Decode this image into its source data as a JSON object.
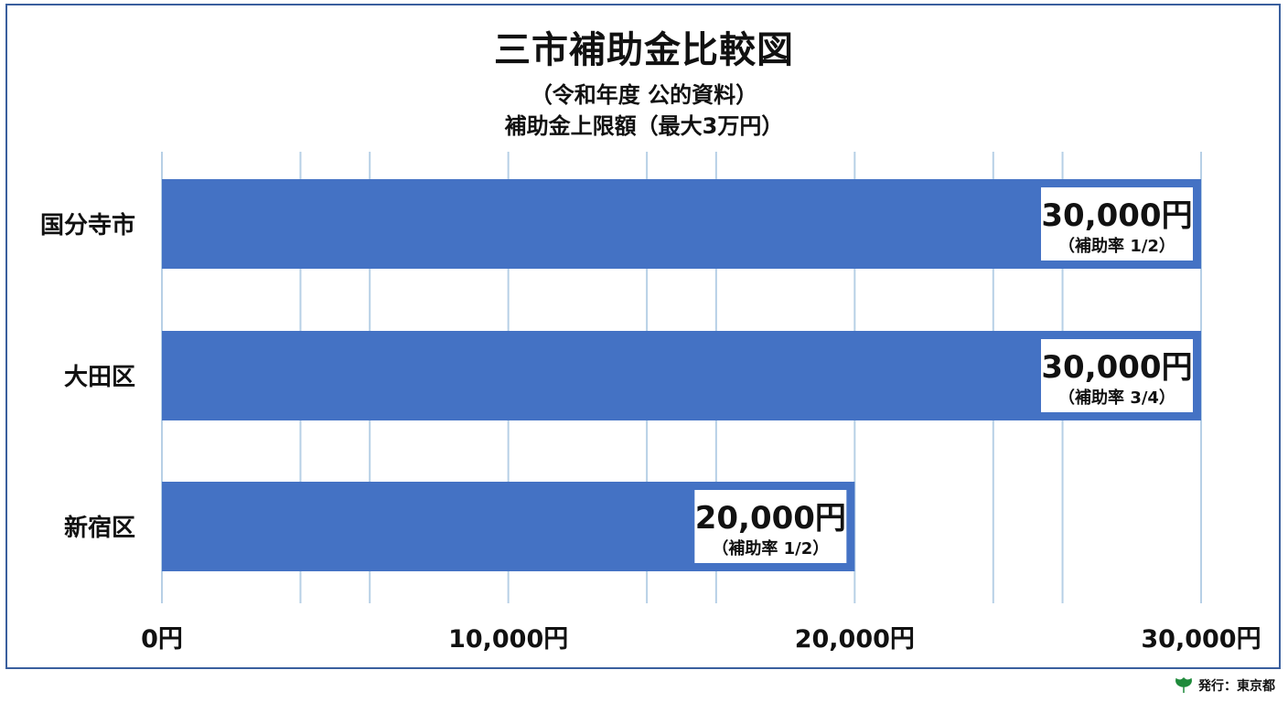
{
  "title": "三市補助金比較図",
  "subtitle_1": "（令和年度 公的資料）",
  "subtitle_2": "補助金上限額（最大3万円）",
  "footer": {
    "publisher": "発行：東京都",
    "icon": "ginkgo-leaf-icon",
    "icon_color": "#1f8a3b"
  },
  "colors": {
    "bar": "#4472c4",
    "grid": "#b7d0e6",
    "frame": "#3a5f9e"
  },
  "chart_data": {
    "type": "bar",
    "orientation": "horizontal",
    "categories": [
      "国分寺市",
      "大田区",
      "新宿区"
    ],
    "values": [
      30000,
      30000,
      20000
    ],
    "value_labels": [
      "30,000円",
      "30,000円",
      "20,000円"
    ],
    "rate_labels": [
      "（補助率 1/2）",
      "（補助率 3/4）",
      "（補助率 1/2）"
    ],
    "xlim": [
      0,
      30000
    ],
    "x_ticks": [
      0,
      10000,
      20000,
      30000
    ],
    "x_tick_labels": [
      "0円",
      "10,000円",
      "20,000円",
      "30,000円"
    ],
    "grid": true
  }
}
